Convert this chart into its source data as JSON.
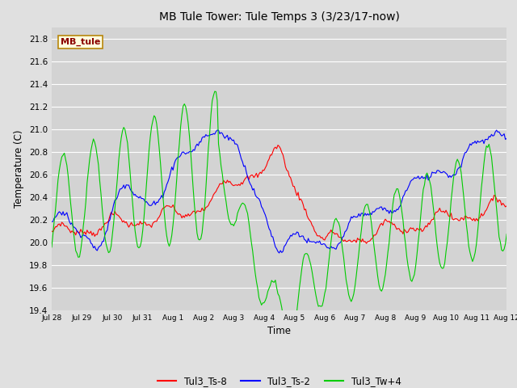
{
  "title": "MB Tule Tower: Tule Temps 3 (3/23/17-now)",
  "ylabel": "Temperature (C)",
  "xlabel": "Time",
  "ylim": [
    19.4,
    21.9
  ],
  "figsize": [
    6.4,
    4.8
  ],
  "dpi": 100,
  "background_color": "#e0e0e0",
  "plot_bg_color": "#d3d3d3",
  "grid_color": "#ffffff",
  "legend_label": "MB_tule",
  "legend_bg": "#ffffe0",
  "legend_edge": "#b8860b",
  "legend_text_color": "#8b0000",
  "series": {
    "Tul3_Ts-8": {
      "color": "#ff0000"
    },
    "Tul3_Ts-2": {
      "color": "#0000ff"
    },
    "Tul3_Tw+4": {
      "color": "#00cc00"
    }
  },
  "xtick_labels": [
    "Jul 28",
    "Jul 29",
    "Jul 30",
    "Jul 31",
    "Aug 1",
    "Aug 2",
    "Aug 3",
    "Aug 4",
    "Aug 5",
    "Aug 6",
    "Aug 7",
    "Aug 8",
    "Aug 9",
    "Aug 10",
    "Aug 11",
    "Aug 12"
  ],
  "ytick_labels": [
    "19.4",
    "19.6",
    "19.8",
    "20.0",
    "20.2",
    "20.4",
    "20.6",
    "20.8",
    "21.0",
    "21.2",
    "21.4",
    "21.6",
    "21.8"
  ],
  "yticks": [
    19.4,
    19.6,
    19.8,
    20.0,
    20.2,
    20.4,
    20.6,
    20.8,
    21.0,
    21.2,
    21.4,
    21.6,
    21.8
  ]
}
